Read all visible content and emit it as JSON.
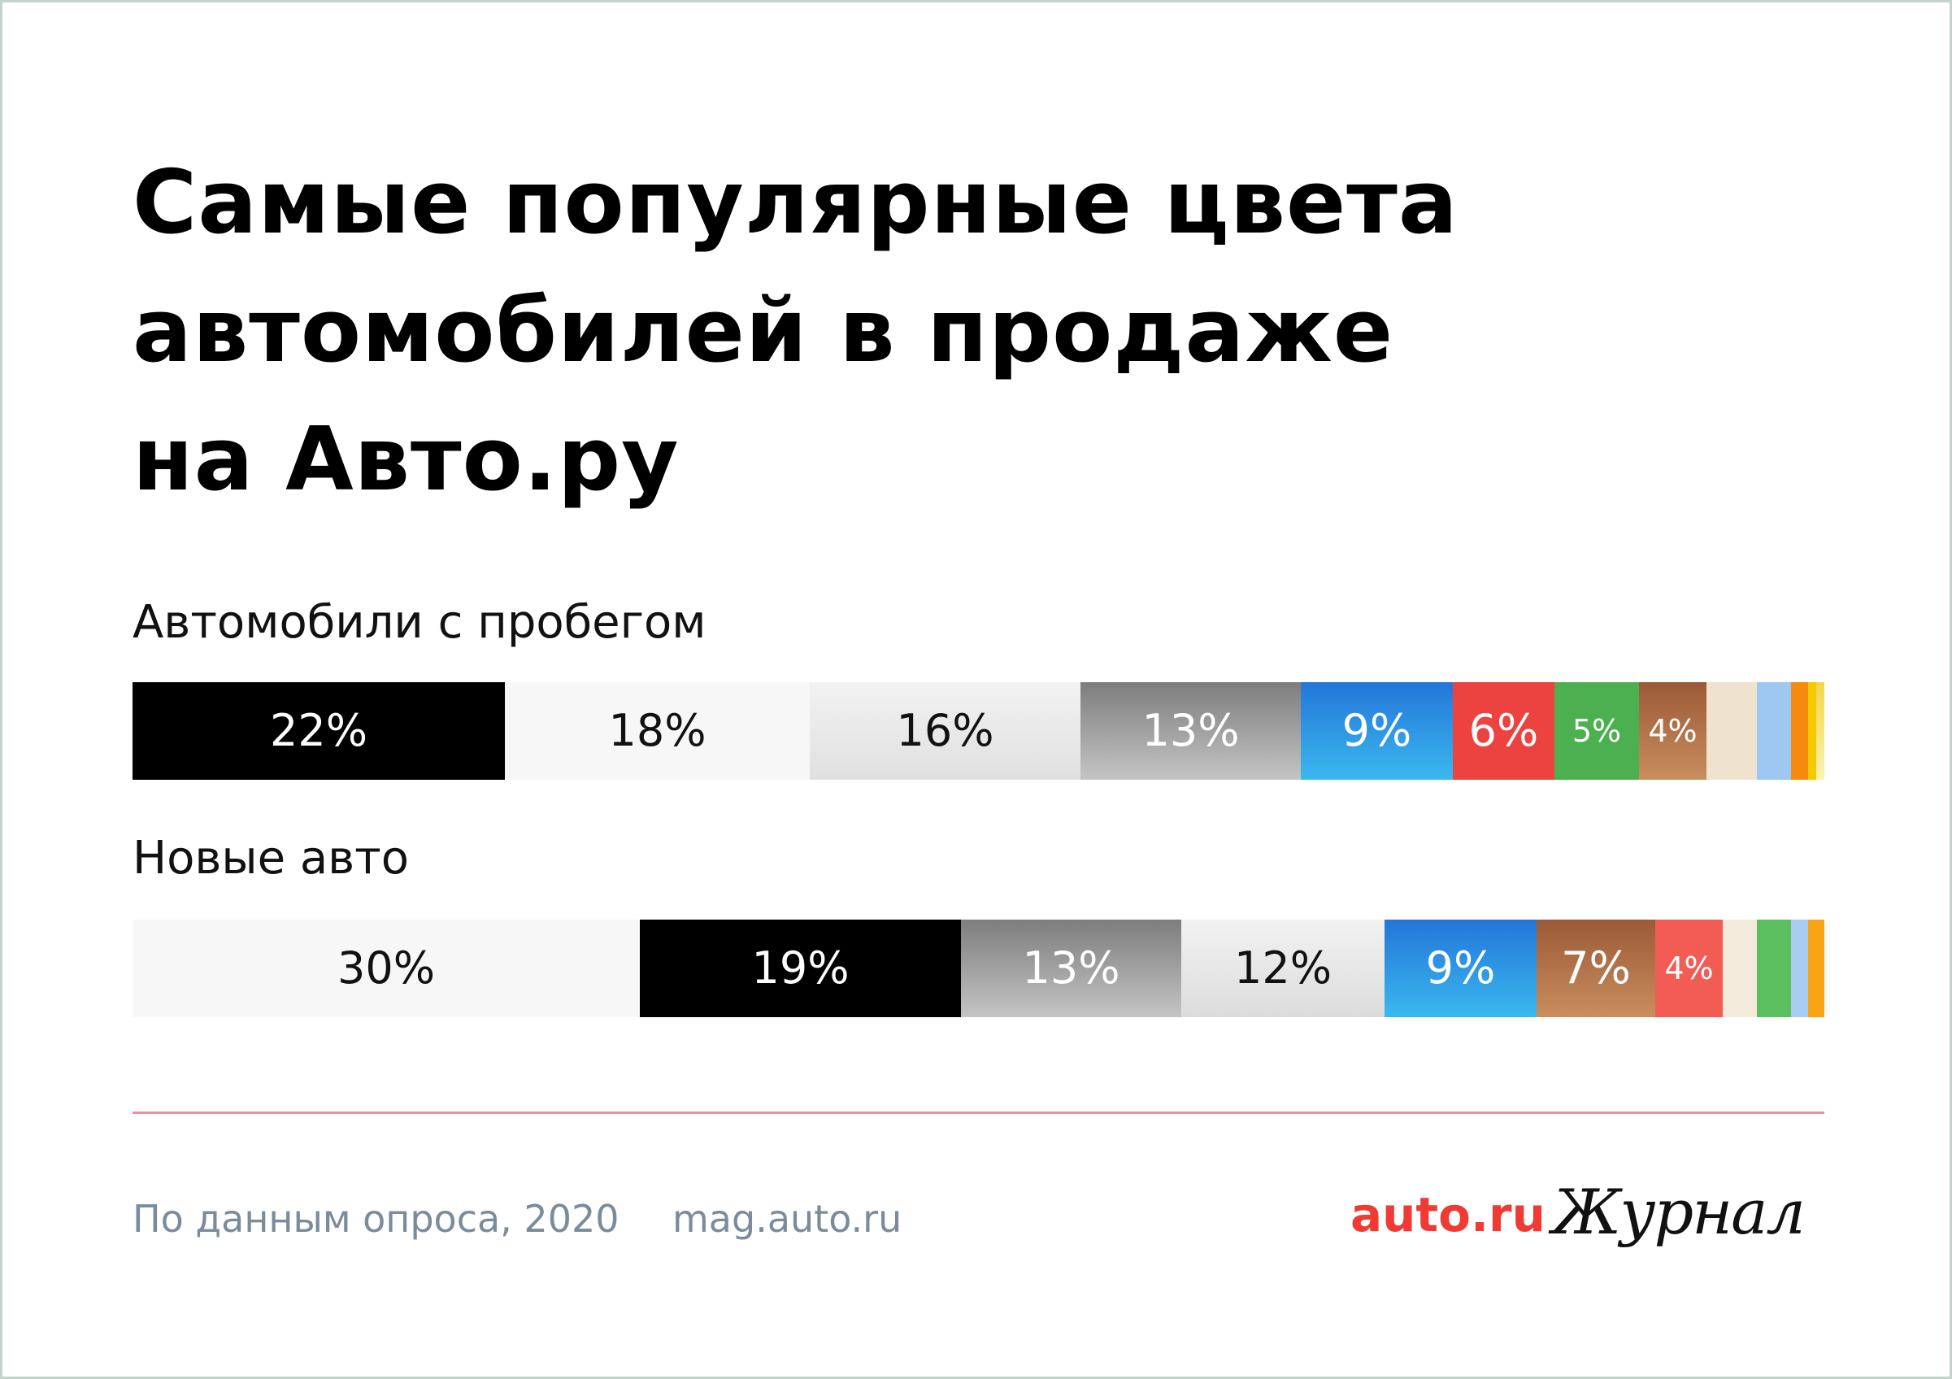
{
  "title_lines": [
    "Самые популярные цвета",
    "автомобилей в продаже",
    "на Авто.ру"
  ],
  "chart_data": {
    "type": "bar",
    "orientation": "horizontal-stacked",
    "unit": "%",
    "series": [
      {
        "name": "Автомобили с пробегом",
        "segments": [
          {
            "label": "22%",
            "value": 22,
            "color": "#000000",
            "text_color": "#ffffff"
          },
          {
            "label": "18%",
            "value": 18,
            "color": "#f7f7f7",
            "text_color": "#111111"
          },
          {
            "label": "16%",
            "value": 16,
            "gradient": [
              "#f2f2f2",
              "#e0e0e0"
            ],
            "text_color": "#111111"
          },
          {
            "label": "13%",
            "value": 13,
            "gradient": [
              "#7d7d7d",
              "#c4c4c4"
            ],
            "text_color": "#ffffff"
          },
          {
            "label": "9%",
            "value": 9,
            "gradient": [
              "#2476d9",
              "#3ab8ee"
            ],
            "text_color": "#ffffff"
          },
          {
            "label": "6%",
            "value": 6,
            "color": "#ec4340",
            "text_color": "#ffffff"
          },
          {
            "label": "5%",
            "value": 5,
            "color": "#4caf50",
            "text_color": "#ffffff",
            "small": true
          },
          {
            "label": "4%",
            "value": 4,
            "gradient": [
              "#9b5a37",
              "#c98d5e"
            ],
            "text_color": "#ffffff",
            "small": true
          },
          {
            "label": "",
            "value": 3,
            "color": "#efe3cf"
          },
          {
            "label": "",
            "value": 2,
            "color": "#9ec8f2"
          },
          {
            "label": "",
            "value": 1,
            "color": "#f58a0c"
          },
          {
            "label": "",
            "value": 0.5,
            "color": "#f6c800"
          },
          {
            "label": "",
            "value": 0.5,
            "gradient": [
              "#f2d64a",
              "#fbf3b0"
            ]
          }
        ]
      },
      {
        "name": "Новые авто",
        "segments": [
          {
            "label": "30%",
            "value": 30,
            "color": "#f7f7f7",
            "text_color": "#111111"
          },
          {
            "label": "19%",
            "value": 19,
            "color": "#000000",
            "text_color": "#ffffff"
          },
          {
            "label": "13%",
            "value": 13,
            "gradient": [
              "#7d7d7d",
              "#c4c4c4"
            ],
            "text_color": "#ffffff"
          },
          {
            "label": "12%",
            "value": 12,
            "gradient": [
              "#f2f2f2",
              "#dcdcdc"
            ],
            "text_color": "#111111"
          },
          {
            "label": "9%",
            "value": 9,
            "gradient": [
              "#2476d9",
              "#3ab8ee"
            ],
            "text_color": "#ffffff"
          },
          {
            "label": "7%",
            "value": 7,
            "gradient": [
              "#9b5a37",
              "#c98d5e"
            ],
            "text_color": "#ffffff"
          },
          {
            "label": "4%",
            "value": 4,
            "color": "#f35b55",
            "text_color": "#ffffff",
            "small": true
          },
          {
            "label": "",
            "value": 2,
            "color": "#f3eadb"
          },
          {
            "label": "",
            "value": 2,
            "color": "#5cbf5f"
          },
          {
            "label": "",
            "value": 1,
            "color": "#a9cdf2"
          },
          {
            "label": "",
            "value": 1,
            "color": "#f9a414"
          }
        ]
      }
    ]
  },
  "footer": {
    "source": "По данным опроса, 2020",
    "site": "mag.auto.ru",
    "brand": "auto.ru",
    "journal": "Журнал"
  },
  "colors": {
    "brand_red": "#ef3b33",
    "divider": "#ef8f96",
    "footer_text": "#7b8b9c"
  }
}
